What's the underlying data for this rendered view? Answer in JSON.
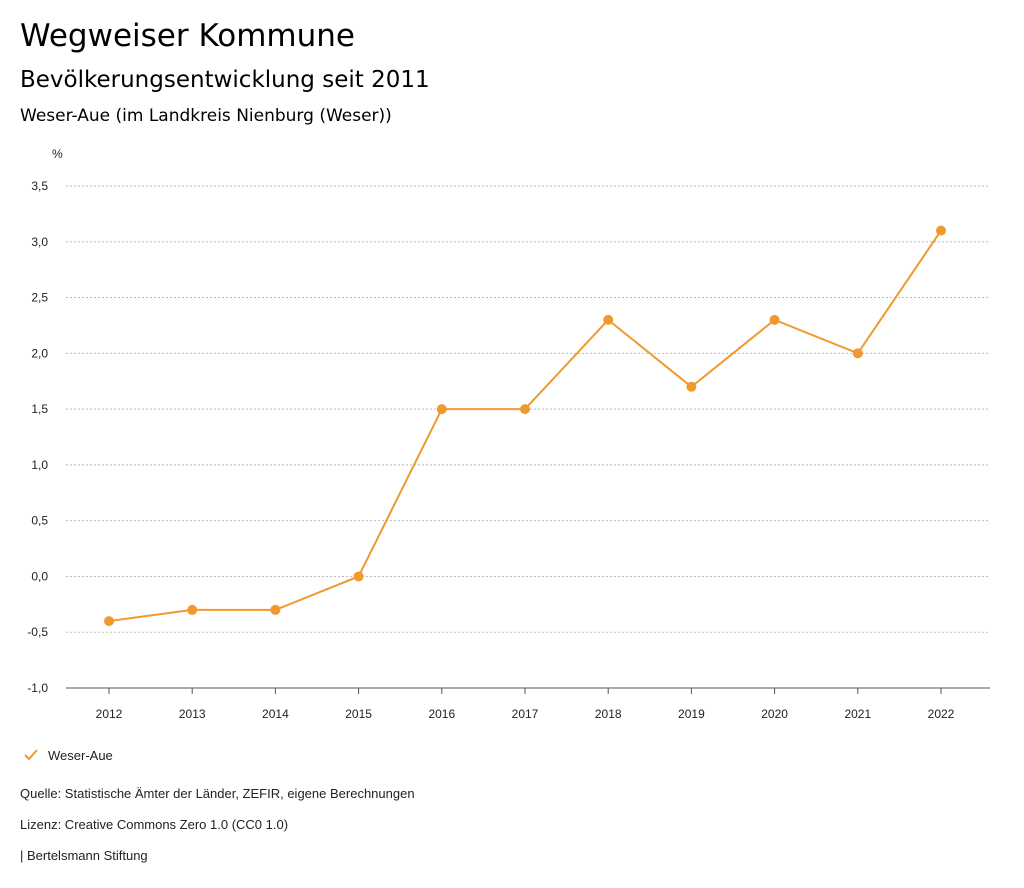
{
  "header": {
    "title": "Wegweiser Kommune",
    "subtitle": "Bevölkerungsentwicklung seit 2011",
    "region": "Weser-Aue (im Landkreis Nienburg (Weser))"
  },
  "colors": {
    "series": "#f0992f",
    "grid": "#bbbbbb",
    "axis": "#555555"
  },
  "chart_data": {
    "type": "line",
    "title": "Bevölkerungsentwicklung seit 2011",
    "xlabel": "",
    "ylabel": "%",
    "categories": [
      "2012",
      "2013",
      "2014",
      "2015",
      "2016",
      "2017",
      "2018",
      "2019",
      "2020",
      "2021",
      "2022"
    ],
    "series": [
      {
        "name": "Weser-Aue",
        "values": [
          -0.4,
          -0.3,
          -0.3,
          0.0,
          1.5,
          1.5,
          2.3,
          1.7,
          2.3,
          2.0,
          3.1
        ]
      }
    ],
    "ylim": [
      -1.0,
      3.5
    ],
    "yticks": [
      -1.0,
      -0.5,
      0.0,
      0.5,
      1.0,
      1.5,
      2.0,
      2.5,
      3.0,
      3.5
    ],
    "ytick_labels": [
      "-1,0",
      "-0,5",
      "0,0",
      "0,5",
      "1,0",
      "1,5",
      "2,0",
      "2,5",
      "3,0",
      "3,5"
    ],
    "grid": true,
    "legend_position": "bottom-left"
  },
  "legend": {
    "label": "Weser-Aue"
  },
  "footer": {
    "source": "Quelle: Statistische Ämter der Länder, ZEFIR, eigene Berechnungen",
    "license": "Lizenz: Creative Commons Zero 1.0 (CC0 1.0)",
    "brand": "| Bertelsmann Stiftung"
  }
}
